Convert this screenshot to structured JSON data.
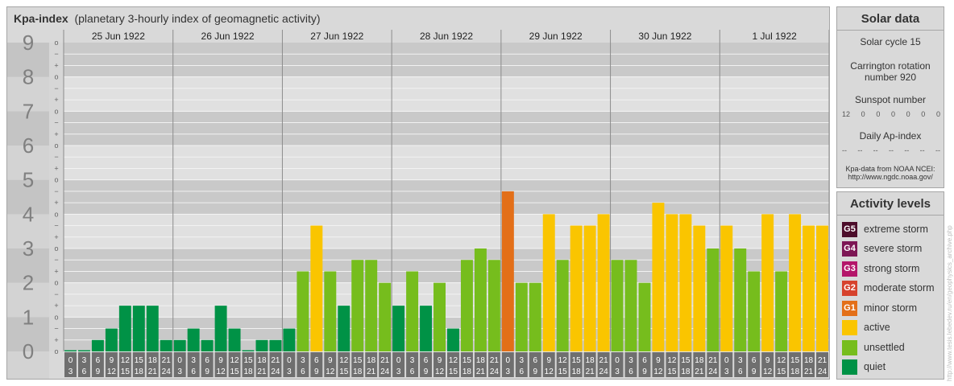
{
  "title": {
    "main": "Kpa-index",
    "sub": "(planetary 3-hourly index of geomagnetic activity)"
  },
  "solar": {
    "title": "Solar data",
    "cycle": "Solar cycle 15",
    "carrington_line1": "Carrington rotation",
    "carrington_line2": "number 920",
    "sunspot_title": "Sunspot number",
    "sunspot_values": [
      "12",
      "0",
      "0",
      "0",
      "0",
      "0",
      "0"
    ],
    "ap_title": "Daily Ap-index",
    "ap_values": [
      "--",
      "--",
      "--",
      "--",
      "--",
      "--",
      "--"
    ],
    "source_line1": "Kpa-data from NOAA NCEI:",
    "source_line2": "http://www.ngdc.noaa.gov/"
  },
  "activity": {
    "title": "Activity levels",
    "items": [
      {
        "code": "G5",
        "label": "extreme storm",
        "color": "#4d0d2a"
      },
      {
        "code": "G4",
        "label": "severe storm",
        "color": "#7d1654"
      },
      {
        "code": "G3",
        "label": "strong storm",
        "color": "#b4166a"
      },
      {
        "code": "G2",
        "label": "moderate storm",
        "color": "#d6422d"
      },
      {
        "code": "G1",
        "label": "minor storm",
        "color": "#e36f18"
      },
      {
        "code": "",
        "label": "active",
        "color": "#fac500"
      },
      {
        "code": "",
        "label": "unsettled",
        "color": "#76bd1d"
      },
      {
        "code": "",
        "label": "quiet",
        "color": "#009246"
      }
    ]
  },
  "watermark": "http://www.tesis.lebedev.ru/en/geophysics_archive.php",
  "chart_data": {
    "type": "bar",
    "title": "Kpa-index",
    "subtitle": "(planetary 3-hourly index of geomagnetic activity)",
    "ylim": [
      0,
      9
    ],
    "y_ticks": [
      "0",
      "1",
      "2",
      "3",
      "4",
      "5",
      "6",
      "7",
      "8",
      "9"
    ],
    "sub_ticks": [
      "o",
      "+",
      "−"
    ],
    "days": [
      "25 Jun 1922",
      "26 Jun 1922",
      "27 Jun 1922",
      "28 Jun 1922",
      "29 Jun 1922",
      "30 Jun 1922",
      "1 Jul 1922"
    ],
    "hour_labels_top": [
      "0",
      "3",
      "6",
      "9",
      "12",
      "15",
      "18",
      "21"
    ],
    "hour_labels_bottom": [
      "3",
      "6",
      "9",
      "12",
      "15",
      "18",
      "21",
      "24"
    ],
    "values": [
      0,
      0,
      0.333,
      0.667,
      1.333,
      1.333,
      1.333,
      0.333,
      0.333,
      0.667,
      0.333,
      1.333,
      0.667,
      0,
      0.333,
      0.333,
      0.667,
      2.333,
      3.667,
      2.333,
      1.333,
      2.667,
      2.667,
      2,
      1.333,
      2.333,
      1.333,
      2,
      0.667,
      2.667,
      3,
      2.667,
      4.667,
      2,
      2,
      4,
      2.667,
      3.667,
      3.667,
      4,
      2.667,
      2.667,
      2,
      4.333,
      4,
      4,
      3.667,
      3,
      3.667,
      3,
      2.333,
      4,
      2.333,
      4,
      3.667,
      3.667
    ],
    "colors": {
      "quiet": "#009246",
      "unsettled": "#76bd1d",
      "active": "#fac500",
      "G1": "#e36f18"
    },
    "grid": true
  }
}
